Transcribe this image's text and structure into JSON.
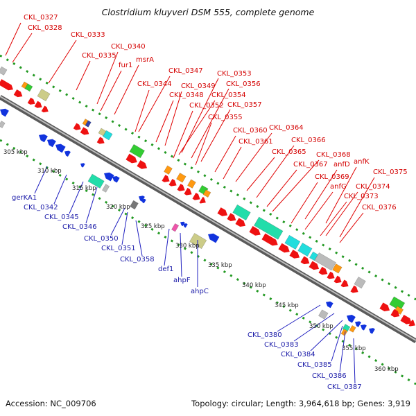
{
  "title": "Clostridium kluyveri DSM 555, complete genome",
  "accession": "Accession: NC_009706",
  "summary": "Topology: circular; Length: 3,964,618 bp; Genes: 3,919",
  "kbp_ticks": [
    "305 kbp",
    "310 kbp",
    "315 kbp",
    "320 kbp",
    "325 kbp",
    "330 kbp",
    "335 kbp",
    "340 kbp",
    "345 kbp",
    "350 kbp",
    "355 kbp",
    "360 kbp"
  ],
  "forward_genes": [
    "CKL_0327",
    "CKL_0328",
    "CKL_0333",
    "CKL_0335",
    "CKL_0340",
    "fur1",
    "msrA",
    "CKL_0344",
    "CKL_0347",
    "CKL_0349",
    "CKL_0348",
    "CKL_0353",
    "CKL_0356",
    "CKL_0354",
    "CKL_0352",
    "CKL_0357",
    "CKL_0355",
    "CKL_0360",
    "CKL_0364",
    "CKL_0361",
    "CKL_0366",
    "CKL_0365",
    "CKL_0368",
    "CKL_0367",
    "anfK",
    "anfD",
    "CKL_0375",
    "CKL_0369",
    "anfG",
    "CKL_0374",
    "CKL_0373",
    "CKL_0376"
  ],
  "reverse_genes": [
    "gerKA1",
    "CKL_0342",
    "CKL_0345",
    "CKL_0346",
    "CKL_0350",
    "CKL_0351",
    "CKL_0358",
    "def1",
    "ahpF",
    "ahpC",
    "CKL_0380",
    "CKL_0383",
    "CKL_0384",
    "CKL_0385",
    "CKL_0386",
    "CKL_0387"
  ],
  "colors": {
    "forward": "#ee1111",
    "reverse": "#1133dd",
    "backbone": "#8a8a8a",
    "gc_dots": "#229922",
    "cds_green": "#33cc33",
    "cds_teal": "#22ddaa",
    "cds_cyan": "#22dddd",
    "cds_orange": "#ff9911",
    "cds_khaki": "#cccc88",
    "cds_grey": "#bbbbbb",
    "cds_pink": "#ee55aa"
  }
}
